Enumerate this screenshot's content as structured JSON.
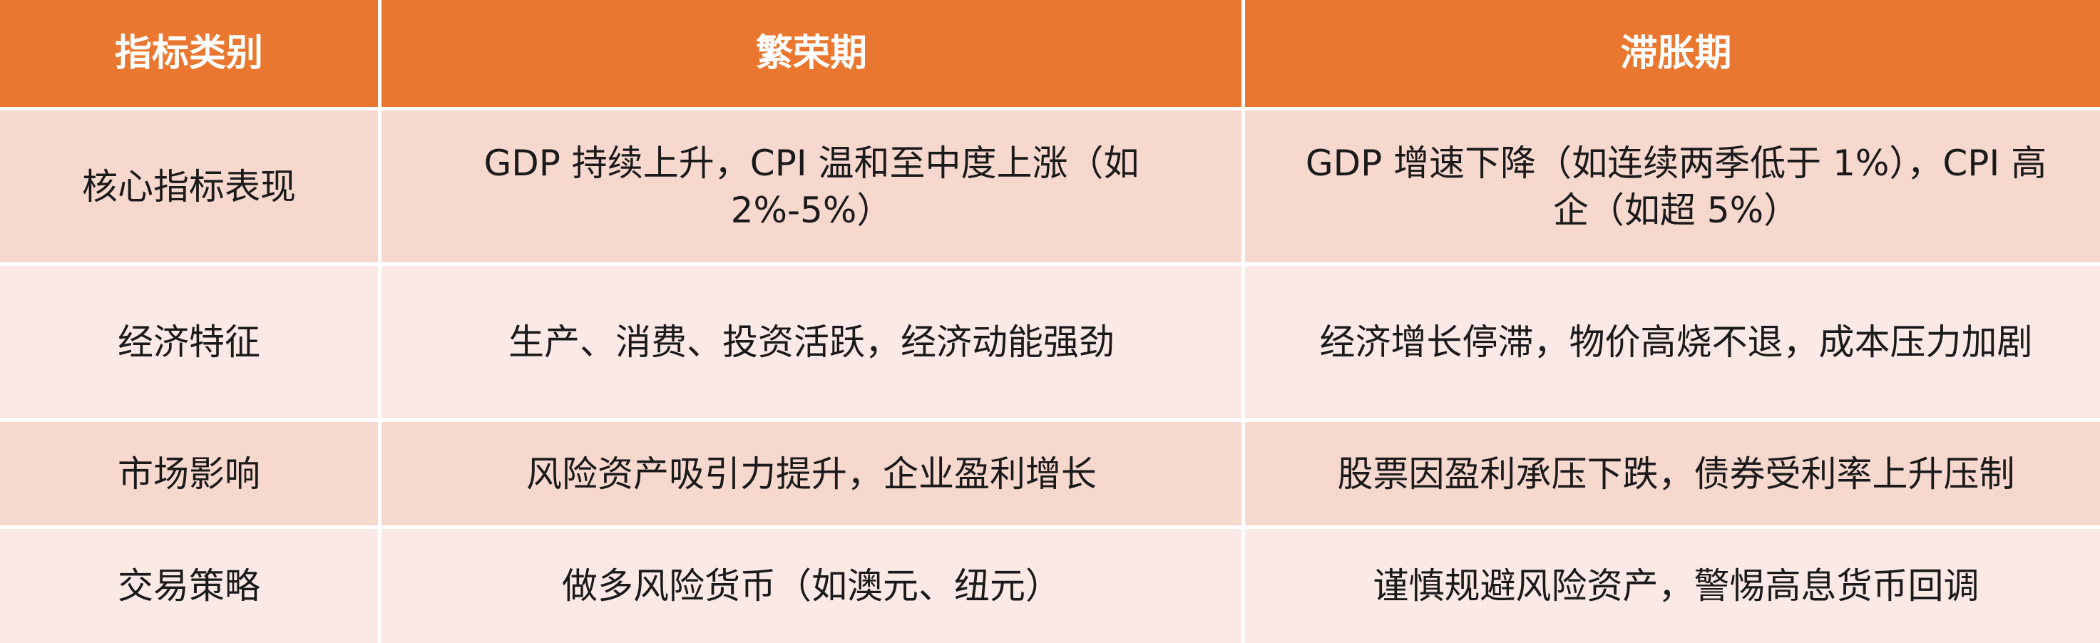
{
  "header": [
    "指标类别",
    "繁荣期",
    "滞胀期"
  ],
  "rows": [
    [
      "核心指标表现",
      "GDP 持续上升，CPI 温和至中度上涨（如 2%-5%）",
      "GDP 增速下降（如连续两季低于 1%），CPI 高企（如超 5%）"
    ],
    [
      "经济特征",
      "生产、消费、投资活跃，经济动能强劲",
      "经济增长停滞，物价高烧不退，成本压力加剧"
    ],
    [
      "市场影响",
      "风险资产吸引力提升，企业盈利增长",
      "股票因盈利承压下跌，债券受利率上升压制"
    ],
    [
      "交易策略",
      "做多风险货币（如澳元、纽元）",
      "谨慎规避风险资产，警惕高息货币回调"
    ]
  ],
  "colors": {
    "header_bg": "#e9772f",
    "row_odd_bg": "#f7d8cf",
    "row_even_bg": "#fbe9e5",
    "header_text": "#ffffff"
  }
}
